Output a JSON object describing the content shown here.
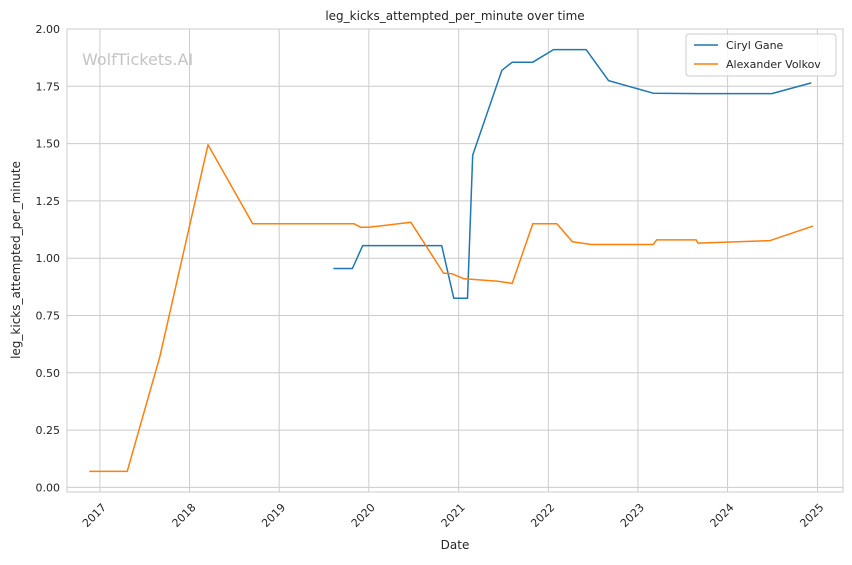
{
  "chart_data": {
    "type": "line",
    "title": "leg_kicks_attempted_per_minute over time",
    "xlabel": "Date",
    "ylabel": "leg_kicks_attempted_per_minute",
    "watermark": "WolfTickets.AI",
    "xlim": [
      "2016-08-20",
      "2025-04-15"
    ],
    "ylim": [
      -0.02,
      2.0
    ],
    "x_ticks": [
      "2017-01-01",
      "2018-01-01",
      "2019-01-01",
      "2020-01-01",
      "2021-01-01",
      "2022-01-01",
      "2023-01-01",
      "2024-01-01",
      "2025-01-01"
    ],
    "x_tick_labels": [
      "2017",
      "2018",
      "2019",
      "2020",
      "2021",
      "2022",
      "2023",
      "2024",
      "2025"
    ],
    "y_ticks": [
      0.0,
      0.25,
      0.5,
      0.75,
      1.0,
      1.25,
      1.5,
      1.75,
      2.0
    ],
    "y_tick_labels": [
      "0.00",
      "0.25",
      "0.50",
      "0.75",
      "1.00",
      "1.25",
      "1.50",
      "1.75",
      "2.00"
    ],
    "grid": true,
    "legend_position": "top-right",
    "series": [
      {
        "name": "Ciryl Gane",
        "color": "#1f77b4",
        "points": [
          [
            "2019-08-10",
            0.955
          ],
          [
            "2019-10-26",
            0.955
          ],
          [
            "2019-12-07",
            1.055
          ],
          [
            "2020-06-27",
            1.055
          ],
          [
            "2020-10-24",
            1.055
          ],
          [
            "2020-12-12",
            0.825
          ],
          [
            "2021-02-06",
            0.825
          ],
          [
            "2021-02-27",
            1.45
          ],
          [
            "2021-06-26",
            1.82
          ],
          [
            "2021-08-07",
            1.855
          ],
          [
            "2021-10-30",
            1.855
          ],
          [
            "2022-01-22",
            1.91
          ],
          [
            "2022-06-04",
            1.91
          ],
          [
            "2022-09-03",
            1.775
          ],
          [
            "2023-03-04",
            1.72
          ],
          [
            "2023-09-02",
            1.718
          ],
          [
            "2024-06-29",
            1.718
          ],
          [
            "2024-12-07",
            1.765
          ]
        ]
      },
      {
        "name": "Alexander Volkov",
        "color": "#ff7f0e",
        "points": [
          [
            "2016-11-19",
            0.07
          ],
          [
            "2017-04-22",
            0.07
          ],
          [
            "2017-09-02",
            0.57
          ],
          [
            "2018-03-17",
            1.495
          ],
          [
            "2018-09-15",
            1.15
          ],
          [
            "2019-11-02",
            1.15
          ],
          [
            "2019-11-30",
            1.135
          ],
          [
            "2020-01-01",
            1.135
          ],
          [
            "2020-06-20",
            1.157
          ],
          [
            "2020-10-31",
            0.935
          ],
          [
            "2020-12-05",
            0.932
          ],
          [
            "2021-01-23",
            0.91
          ],
          [
            "2021-06-05",
            0.9
          ],
          [
            "2021-08-07",
            0.89
          ],
          [
            "2021-10-30",
            1.15
          ],
          [
            "2022-02-05",
            1.15
          ],
          [
            "2022-04-09",
            1.072
          ],
          [
            "2022-06-25",
            1.06
          ],
          [
            "2023-03-04",
            1.06
          ],
          [
            "2023-03-18",
            1.08
          ],
          [
            "2023-08-26",
            1.08
          ],
          [
            "2023-09-02",
            1.066
          ],
          [
            "2024-06-22",
            1.077
          ],
          [
            "2024-12-14",
            1.14
          ]
        ]
      }
    ]
  }
}
